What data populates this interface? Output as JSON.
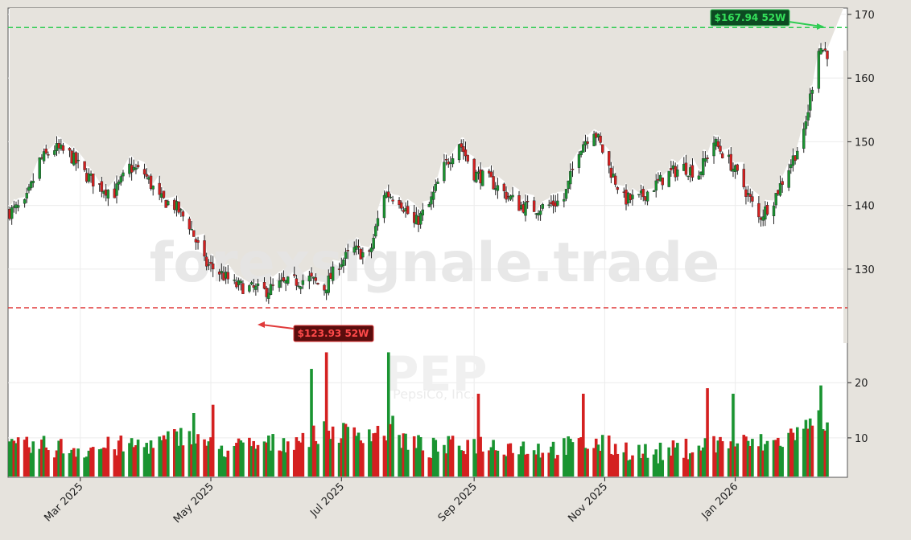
{
  "watermark": {
    "text": "forexsignale.trade",
    "symbol": "PEP",
    "company": "PepsiCo, Inc."
  },
  "colors": {
    "up": "#1a9431",
    "down": "#d42020",
    "hi_line": "#2ecc52",
    "lo_line": "#e03a3a",
    "bg": "#e6e3dd"
  },
  "annotations": {
    "high_label": "$167.94 52W",
    "low_label": "$123.93 52W"
  },
  "chart_data": [
    {
      "type": "candlestick",
      "title": "",
      "ylabel": "",
      "ylim": [
        118,
        171
      ],
      "yticks": [
        130,
        140,
        150,
        160,
        170
      ],
      "ytick_labels": [
        "130",
        "140",
        "150",
        "160",
        "170"
      ],
      "grid": true,
      "x_ticks": [
        {
          "date": "2025-03-01",
          "label": "Mar 2025"
        },
        {
          "date": "2025-05-01",
          "label": "May 2025"
        },
        {
          "date": "2025-07-01",
          "label": "Jul 2025"
        },
        {
          "date": "2025-09-01",
          "label": "Sep 2025"
        },
        {
          "date": "2025-11-01",
          "label": "Nov 2025"
        },
        {
          "date": "2026-01-01",
          "label": "Jan 2026"
        }
      ],
      "reference_lines": [
        {
          "name": "52W high",
          "value": 167.94
        },
        {
          "name": "52W low",
          "value": 123.93
        }
      ],
      "weekly_path": [
        {
          "x": "2025-01-27",
          "y": 139
        },
        {
          "x": "2025-02-03",
          "y": 140
        },
        {
          "x": "2025-02-10",
          "y": 147
        },
        {
          "x": "2025-02-17",
          "y": 149
        },
        {
          "x": "2025-02-24",
          "y": 148
        },
        {
          "x": "2025-03-03",
          "y": 145
        },
        {
          "x": "2025-03-10",
          "y": 143
        },
        {
          "x": "2025-03-17",
          "y": 142
        },
        {
          "x": "2025-03-24",
          "y": 146
        },
        {
          "x": "2025-03-31",
          "y": 145
        },
        {
          "x": "2025-04-07",
          "y": 141
        },
        {
          "x": "2025-04-14",
          "y": 140
        },
        {
          "x": "2025-04-21",
          "y": 137
        },
        {
          "x": "2025-04-28",
          "y": 131
        },
        {
          "x": "2025-05-05",
          "y": 129.5
        },
        {
          "x": "2025-05-12",
          "y": 127.5
        },
        {
          "x": "2025-05-19",
          "y": 127
        },
        {
          "x": "2025-05-26",
          "y": 126.5
        },
        {
          "x": "2025-06-02",
          "y": 127.5
        },
        {
          "x": "2025-06-09",
          "y": 128
        },
        {
          "x": "2025-06-16",
          "y": 128.5
        },
        {
          "x": "2025-06-23",
          "y": 127
        },
        {
          "x": "2025-06-30",
          "y": 131
        },
        {
          "x": "2025-07-07",
          "y": 133
        },
        {
          "x": "2025-07-14",
          "y": 132
        },
        {
          "x": "2025-07-21",
          "y": 142
        },
        {
          "x": "2025-07-28",
          "y": 141
        },
        {
          "x": "2025-08-04",
          "y": 137
        },
        {
          "x": "2025-08-11",
          "y": 140
        },
        {
          "x": "2025-08-18",
          "y": 146
        },
        {
          "x": "2025-08-25",
          "y": 150
        },
        {
          "x": "2025-09-01",
          "y": 145
        },
        {
          "x": "2025-09-08",
          "y": 144
        },
        {
          "x": "2025-09-15",
          "y": 142
        },
        {
          "x": "2025-09-22",
          "y": 140
        },
        {
          "x": "2025-09-29",
          "y": 139.5
        },
        {
          "x": "2025-10-06",
          "y": 140
        },
        {
          "x": "2025-10-13",
          "y": 141
        },
        {
          "x": "2025-10-20",
          "y": 149
        },
        {
          "x": "2025-10-27",
          "y": 152
        },
        {
          "x": "2025-11-03",
          "y": 146
        },
        {
          "x": "2025-11-10",
          "y": 141
        },
        {
          "x": "2025-11-17",
          "y": 141
        },
        {
          "x": "2025-11-24",
          "y": 143
        },
        {
          "x": "2025-12-01",
          "y": 145
        },
        {
          "x": "2025-12-08",
          "y": 146
        },
        {
          "x": "2025-12-15",
          "y": 145
        },
        {
          "x": "2025-12-22",
          "y": 150
        },
        {
          "x": "2025-12-29",
          "y": 147
        },
        {
          "x": "2026-01-05",
          "y": 143
        },
        {
          "x": "2026-01-12",
          "y": 138
        },
        {
          "x": "2026-01-19",
          "y": 141
        },
        {
          "x": "2026-01-26",
          "y": 146
        },
        {
          "x": "2026-02-02",
          "y": 151
        },
        {
          "x": "2026-02-09",
          "y": 165
        },
        {
          "x": "2026-02-13",
          "y": 164
        }
      ]
    },
    {
      "type": "bar",
      "ylabel": "",
      "ylim": [
        3,
        26
      ],
      "yticks": [
        10,
        20
      ],
      "ytick_labels": [
        "10",
        "20"
      ],
      "values_note": "volume",
      "volume_path": [
        {
          "x": "2025-01-27",
          "y": 8
        },
        {
          "x": "2025-02-10",
          "y": 8.5
        },
        {
          "x": "2025-03-03",
          "y": 8
        },
        {
          "x": "2025-04-07",
          "y": 9
        },
        {
          "x": "2025-04-21",
          "y": 11
        },
        {
          "x": "2025-05-05",
          "y": 8
        },
        {
          "x": "2025-06-02",
          "y": 9
        },
        {
          "x": "2025-06-23",
          "y": 11
        },
        {
          "x": "2025-07-21",
          "y": 11
        },
        {
          "x": "2025-08-11",
          "y": 8
        },
        {
          "x": "2025-09-01",
          "y": 9
        },
        {
          "x": "2025-10-06",
          "y": 8
        },
        {
          "x": "2025-10-27",
          "y": 9
        },
        {
          "x": "2025-11-24",
          "y": 7
        },
        {
          "x": "2025-12-22",
          "y": 9
        },
        {
          "x": "2026-01-19",
          "y": 9
        },
        {
          "x": "2026-02-09",
          "y": 13
        }
      ],
      "spikes": [
        {
          "x": "2025-06-17",
          "y": 22.5
        },
        {
          "x": "2025-06-24",
          "y": 25.5
        },
        {
          "x": "2025-07-23",
          "y": 25.5
        },
        {
          "x": "2025-07-25",
          "y": 14
        },
        {
          "x": "2025-05-02",
          "y": 16
        },
        {
          "x": "2025-04-23",
          "y": 14.5
        },
        {
          "x": "2025-09-03",
          "y": 18
        },
        {
          "x": "2025-10-22",
          "y": 18
        },
        {
          "x": "2025-12-19",
          "y": 19
        },
        {
          "x": "2025-12-31",
          "y": 18
        },
        {
          "x": "2026-02-10",
          "y": 19.5
        },
        {
          "x": "2026-02-09",
          "y": 15
        }
      ]
    }
  ]
}
